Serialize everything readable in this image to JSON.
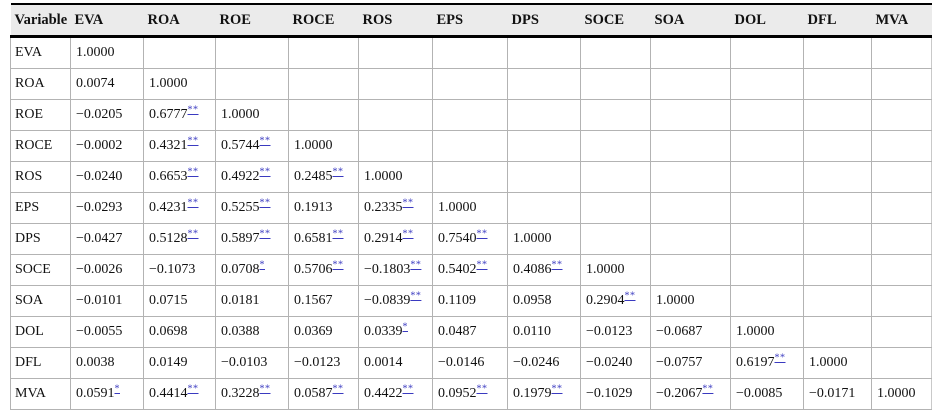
{
  "table": {
    "name": "correlation-matrix",
    "columns": [
      "Variable",
      "EVA",
      "ROA",
      "ROE",
      "ROCE",
      "ROS",
      "EPS",
      "DPS",
      "SOCE",
      "SOA",
      "DOL",
      "DFL",
      "MVA"
    ],
    "rows": [
      {
        "variable": "EVA",
        "cells": [
          {
            "v": "1.0000"
          }
        ]
      },
      {
        "variable": "ROA",
        "cells": [
          {
            "v": "0.0074"
          },
          {
            "v": "1.0000"
          }
        ]
      },
      {
        "variable": "ROE",
        "cells": [
          {
            "v": "−0.0205"
          },
          {
            "v": "0.6777",
            "sig": "**"
          },
          {
            "v": "1.0000"
          }
        ]
      },
      {
        "variable": "ROCE",
        "cells": [
          {
            "v": "−0.0002"
          },
          {
            "v": "0.4321",
            "sig": "**"
          },
          {
            "v": "0.5744",
            "sig": "**"
          },
          {
            "v": "1.0000"
          }
        ]
      },
      {
        "variable": "ROS",
        "cells": [
          {
            "v": "−0.0240"
          },
          {
            "v": "0.6653",
            "sig": "**"
          },
          {
            "v": "0.4922",
            "sig": "**"
          },
          {
            "v": "0.2485",
            "sig": "**"
          },
          {
            "v": "1.0000"
          }
        ]
      },
      {
        "variable": "EPS",
        "cells": [
          {
            "v": "−0.0293"
          },
          {
            "v": "0.4231",
            "sig": "**"
          },
          {
            "v": "0.5255",
            "sig": "**"
          },
          {
            "v": "0.1913"
          },
          {
            "v": "0.2335",
            "sig": "**"
          },
          {
            "v": "1.0000"
          }
        ]
      },
      {
        "variable": "DPS",
        "cells": [
          {
            "v": "−0.0427"
          },
          {
            "v": "0.5128",
            "sig": "**"
          },
          {
            "v": "0.5897",
            "sig": "**"
          },
          {
            "v": "0.6581",
            "sig": "**"
          },
          {
            "v": "0.2914",
            "sig": "**"
          },
          {
            "v": "0.7540",
            "sig": "**"
          },
          {
            "v": "1.0000"
          }
        ]
      },
      {
        "variable": "SOCE",
        "cells": [
          {
            "v": "−0.0026"
          },
          {
            "v": "−0.1073"
          },
          {
            "v": "0.0708",
            "sig": "*"
          },
          {
            "v": "0.5706",
            "sig": "**"
          },
          {
            "v": "−0.1803",
            "sig": "**"
          },
          {
            "v": "0.5402",
            "sig": "**"
          },
          {
            "v": "0.4086",
            "sig": "**"
          },
          {
            "v": "1.0000"
          }
        ]
      },
      {
        "variable": "SOA",
        "cells": [
          {
            "v": "−0.0101"
          },
          {
            "v": "0.0715"
          },
          {
            "v": "0.0181"
          },
          {
            "v": "0.1567"
          },
          {
            "v": "−0.0839",
            "sig": "**"
          },
          {
            "v": "0.1109"
          },
          {
            "v": "0.0958"
          },
          {
            "v": "0.2904",
            "sig": "**"
          },
          {
            "v": "1.0000"
          }
        ]
      },
      {
        "variable": "DOL",
        "cells": [
          {
            "v": "−0.0055"
          },
          {
            "v": "0.0698"
          },
          {
            "v": "0.0388"
          },
          {
            "v": "0.0369"
          },
          {
            "v": "0.0339",
            "sig": "*"
          },
          {
            "v": "0.0487"
          },
          {
            "v": "0.0110"
          },
          {
            "v": "−0.0123"
          },
          {
            "v": "−0.0687"
          },
          {
            "v": "1.0000"
          }
        ]
      },
      {
        "variable": "DFL",
        "cells": [
          {
            "v": "0.0038"
          },
          {
            "v": "0.0149"
          },
          {
            "v": "−0.0103"
          },
          {
            "v": "−0.0123"
          },
          {
            "v": "0.0014"
          },
          {
            "v": "−0.0146"
          },
          {
            "v": "−0.0246"
          },
          {
            "v": "−0.0240"
          },
          {
            "v": "−0.0757"
          },
          {
            "v": "0.6197",
            "sig": "**"
          },
          {
            "v": "1.0000"
          }
        ]
      },
      {
        "variable": "MVA",
        "cells": [
          {
            "v": "0.0591",
            "sig": "*"
          },
          {
            "v": "0.4414",
            "sig": "**"
          },
          {
            "v": "0.3228",
            "sig": "**"
          },
          {
            "v": "0.0587",
            "sig": "**"
          },
          {
            "v": "0.4422",
            "sig": "**"
          },
          {
            "v": "0.0952",
            "sig": "**"
          },
          {
            "v": "0.1979",
            "sig": "**"
          },
          {
            "v": "−0.1029"
          },
          {
            "v": "−0.2067",
            "sig": "**"
          },
          {
            "v": "−0.0085"
          },
          {
            "v": "−0.0171"
          },
          {
            "v": "1.0000"
          }
        ]
      }
    ],
    "colors": {
      "significance_link": "#3a3ac0",
      "header_background": "#ebebeb",
      "grid_line": "#b3b3b3",
      "heavy_rule": "#000000",
      "text": "#111111"
    }
  }
}
